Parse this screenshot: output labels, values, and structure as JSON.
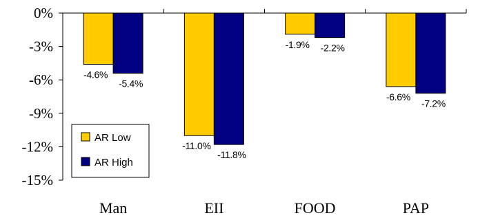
{
  "chart_data": {
    "type": "bar",
    "title": "",
    "xlabel": "",
    "ylabel": "",
    "categories": [
      "Man",
      "EII",
      "FOOD",
      "PAP"
    ],
    "series": [
      {
        "name": "AR Low",
        "color": "#FFCC00",
        "values": [
          -4.6,
          -11.0,
          -1.9,
          -6.6
        ],
        "labels": [
          "-4.6%",
          "-11.0%",
          "-1.9%",
          "-6.6%"
        ]
      },
      {
        "name": "AR High",
        "color": "#000080",
        "values": [
          -5.4,
          -11.8,
          -2.2,
          -7.2
        ],
        "labels": [
          "-5.4%",
          "-11.8%",
          "-2.2%",
          "-7.2%"
        ]
      }
    ],
    "ylim": [
      -15,
      0
    ],
    "yticks": [
      0,
      -3,
      -6,
      -9,
      -12,
      -15
    ],
    "ytick_labels": [
      "0%",
      "-3%",
      "-6%",
      "-9%",
      "-12%",
      "-15%"
    ],
    "grid": false,
    "legend_position": "bottom-left"
  }
}
